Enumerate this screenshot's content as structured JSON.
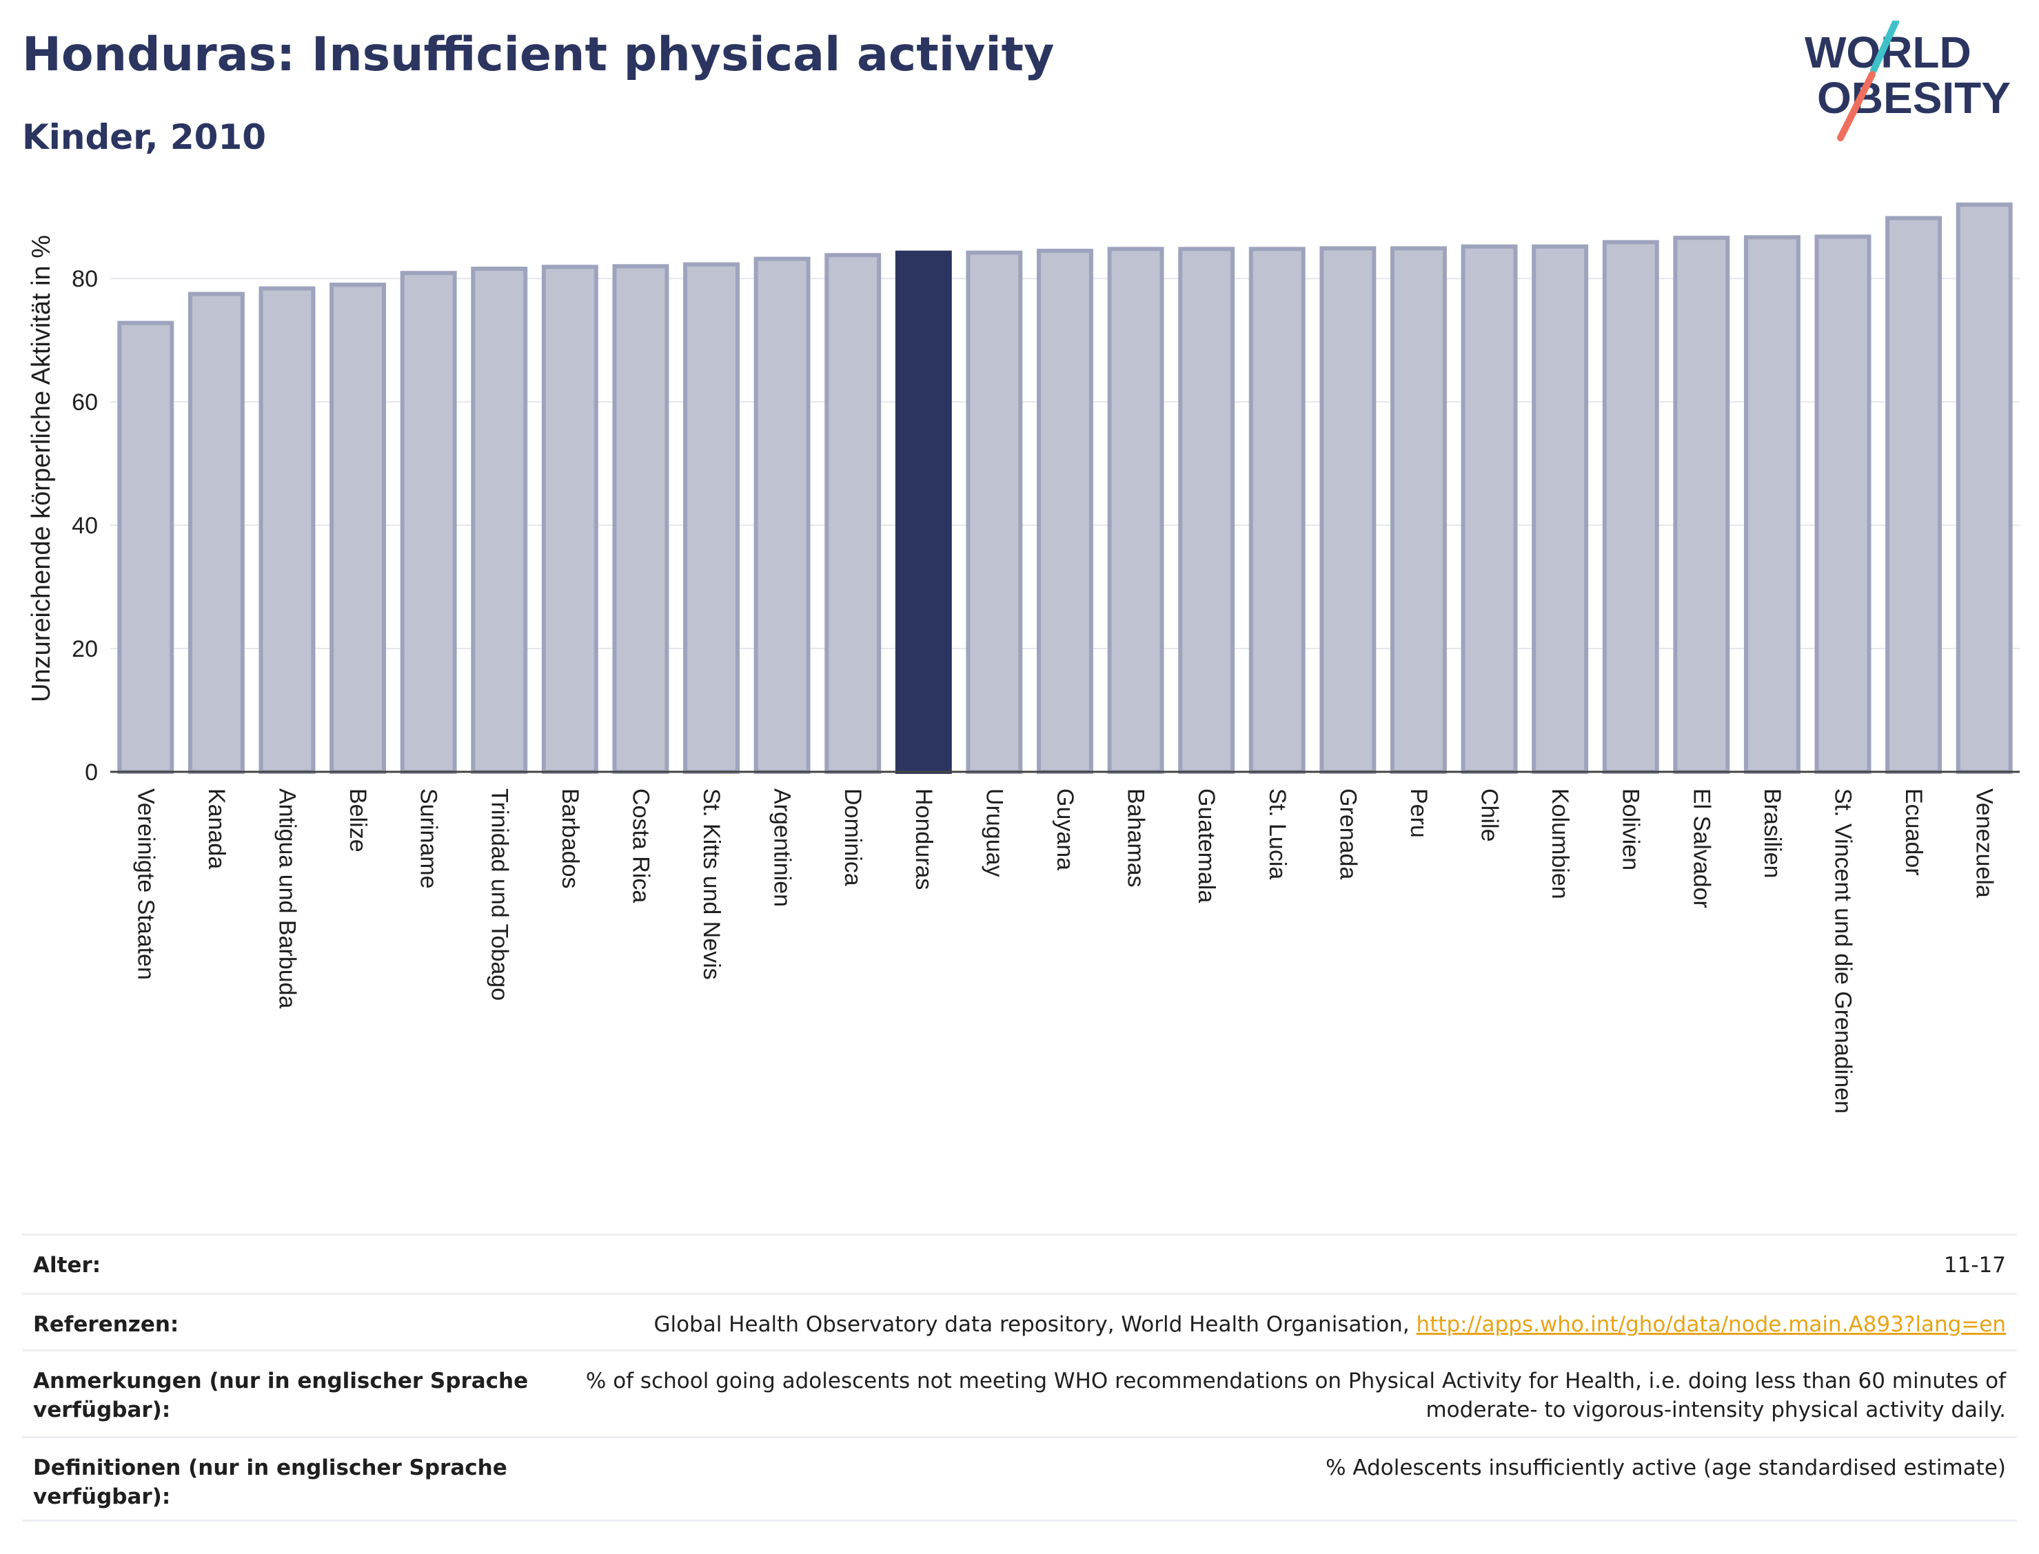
{
  "header": {
    "title": "Honduras: Insufficient physical activity",
    "subtitle": "Kinder, 2010"
  },
  "logo": {
    "line1": "WORLD",
    "line2": "OBESITY",
    "text_color": "#2b3560",
    "slash_top_color": "#3fc1c9",
    "slash_bottom_color": "#ef6f5c"
  },
  "chart_data": {
    "type": "bar",
    "ylabel": "Unzureichende körperliche Aktivität in %",
    "ylim": [
      0,
      95
    ],
    "yticks": [
      0,
      20,
      40,
      60,
      80
    ],
    "grid": true,
    "highlight": "Honduras",
    "colors": {
      "bar": "#bfc2d0",
      "bar_edge": "#9ea3bd",
      "highlight": "#2b3560"
    },
    "categories": [
      "Vereinigte Staaten",
      "Kanada",
      "Antigua und Barbuda",
      "Belize",
      "Suriname",
      "Trinidad und Tobago",
      "Barbados",
      "Costa Rica",
      "St. Kitts und Nevis",
      "Argentinien",
      "Dominica",
      "Honduras",
      "Uruguay",
      "Guyana",
      "Bahamas",
      "Guatemala",
      "St. Lucia",
      "Grenada",
      "Peru",
      "Chile",
      "Kolumbien",
      "Bolivien",
      "El Salvador",
      "Brasilien",
      "St. Vincent und die Grenadinen",
      "Ecuador",
      "Venezuela"
    ],
    "values": [
      72.8,
      77.5,
      78.4,
      79.0,
      80.9,
      81.6,
      81.9,
      82.0,
      82.3,
      83.2,
      83.8,
      84.2,
      84.2,
      84.5,
      84.8,
      84.8,
      84.8,
      84.9,
      84.9,
      85.2,
      85.2,
      85.9,
      86.6,
      86.7,
      86.8,
      89.8,
      92.0
    ]
  },
  "meta": {
    "rows": [
      {
        "label": "Alter:",
        "value": "11-17"
      },
      {
        "label": "Referenzen:",
        "value": "Global Health Observatory data repository, World Health Organisation, ",
        "link": "http://apps.who.int/gho/data/node.main.A893?lang=en"
      },
      {
        "label": "Anmerkungen (nur in englischer Sprache verfügbar):",
        "value": "% of school going adolescents not meeting WHO recommendations on Physical Activity for Health, i.e. doing less than 60 minutes of moderate- to vigorous-intensity physical activity daily."
      },
      {
        "label": "Definitionen (nur in englischer Sprache verfügbar):",
        "value": "% Adolescents insufficiently active (age standardised estimate)"
      }
    ]
  }
}
